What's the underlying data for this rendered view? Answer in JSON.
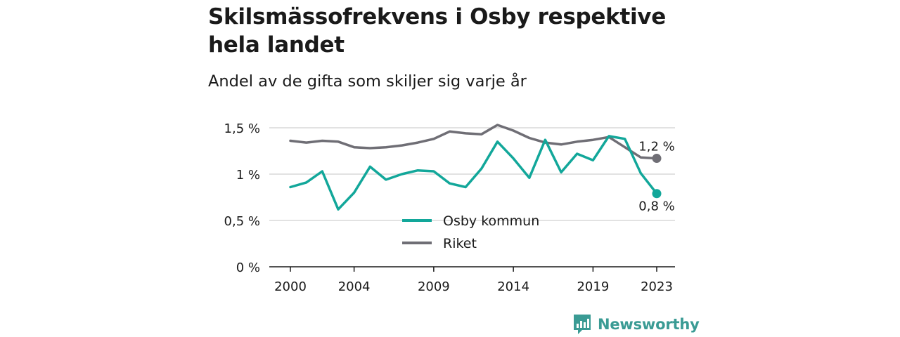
{
  "title": "Skilsmässofrekvens i Osby respektive hela landet",
  "subtitle": "Andel av de gifta som skiljer sig varje år",
  "brand": {
    "name": "Newsworthy",
    "icon": "newsworthy-logo-icon"
  },
  "colors": {
    "osby": "#12a79a",
    "riket": "#6f6e75",
    "grid": "#d9d9d9",
    "axis": "#1a1a1a",
    "brand": "#3a9b94"
  },
  "chart_data": {
    "type": "line",
    "title": "Skilsmässofrekvens i Osby respektive hela landet",
    "subtitle": "Andel av de gifta som skiljer sig varje år",
    "x": [
      2000,
      2001,
      2002,
      2003,
      2004,
      2005,
      2006,
      2007,
      2008,
      2009,
      2010,
      2011,
      2012,
      2013,
      2014,
      2015,
      2016,
      2017,
      2018,
      2019,
      2020,
      2021,
      2022,
      2023
    ],
    "x_ticks": [
      2000,
      2004,
      2009,
      2014,
      2019,
      2023
    ],
    "x_tick_labels": [
      "2000",
      "2004",
      "2009",
      "2014",
      "2019",
      "2023"
    ],
    "y_ticks": [
      0,
      0.5,
      1,
      1.5
    ],
    "y_tick_labels": [
      "0 %",
      "0,5 %",
      "1 %",
      "1,5 %"
    ],
    "ylim": [
      0,
      1.5
    ],
    "grid": true,
    "legend_position": "bottom-center",
    "series": [
      {
        "name": "Osby kommun",
        "color": "#12a79a",
        "end_label": "0,8 %",
        "values": [
          0.86,
          0.91,
          1.03,
          0.62,
          0.8,
          1.08,
          0.94,
          1.0,
          1.04,
          1.03,
          0.9,
          0.86,
          1.06,
          1.35,
          1.17,
          0.96,
          1.37,
          1.02,
          1.22,
          1.15,
          1.41,
          1.38,
          1.01,
          0.79
        ]
      },
      {
        "name": "Riket",
        "color": "#6f6e75",
        "end_label": "1,2 %",
        "values": [
          1.36,
          1.34,
          1.36,
          1.35,
          1.29,
          1.28,
          1.29,
          1.31,
          1.34,
          1.38,
          1.46,
          1.44,
          1.43,
          1.53,
          1.47,
          1.39,
          1.34,
          1.32,
          1.35,
          1.37,
          1.4,
          1.29,
          1.18,
          1.17
        ]
      }
    ]
  }
}
